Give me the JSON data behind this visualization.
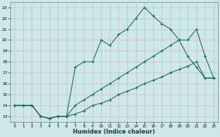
{
  "xlabel": "Humidex (Indice chaleur)",
  "bg_color": "#cce9e8",
  "grid_color": "#c4afc4",
  "line_color": "#1a6b5a",
  "xlim": [
    -0.5,
    23.5
  ],
  "ylim": [
    12.5,
    23.5
  ],
  "xticks": [
    0,
    1,
    2,
    3,
    4,
    5,
    6,
    7,
    8,
    9,
    10,
    11,
    12,
    13,
    14,
    15,
    16,
    17,
    18,
    19,
    20,
    21,
    22,
    23
  ],
  "yticks": [
    13,
    14,
    15,
    16,
    17,
    18,
    19,
    20,
    21,
    22,
    23
  ],
  "series1_x": [
    0,
    1,
    2,
    3,
    4,
    5,
    6,
    7,
    8,
    9,
    10,
    11,
    12,
    13,
    14,
    15,
    16,
    17,
    18,
    19,
    20,
    21,
    22,
    23
  ],
  "series1_y": [
    14,
    14,
    14,
    13,
    12.8,
    13,
    13,
    17.5,
    18,
    18,
    20,
    19.5,
    20.5,
    21,
    22,
    23,
    22.2,
    21.5,
    21,
    20,
    18.5,
    17.5,
    16.5,
    16.5
  ],
  "series2_x": [
    0,
    1,
    2,
    3,
    4,
    5,
    6,
    7,
    8,
    9,
    10,
    11,
    12,
    13,
    14,
    15,
    16,
    17,
    18,
    19,
    20,
    21,
    22,
    23
  ],
  "series2_y": [
    14,
    14,
    14,
    13,
    12.8,
    13,
    13,
    14,
    14.5,
    15,
    15.5,
    16,
    16.5,
    17,
    17.5,
    18,
    18.5,
    19,
    19.5,
    20,
    20,
    21,
    18.5,
    16.5
  ],
  "series3_x": [
    0,
    1,
    2,
    3,
    4,
    5,
    6,
    7,
    8,
    9,
    10,
    11,
    12,
    13,
    14,
    15,
    16,
    17,
    18,
    19,
    20,
    21,
    22,
    23
  ],
  "series3_y": [
    14,
    14,
    14,
    13,
    12.8,
    13,
    13,
    13.2,
    13.5,
    14,
    14.2,
    14.5,
    15,
    15.3,
    15.6,
    16,
    16.3,
    16.6,
    17,
    17.3,
    17.6,
    18,
    16.5,
    16.5
  ]
}
